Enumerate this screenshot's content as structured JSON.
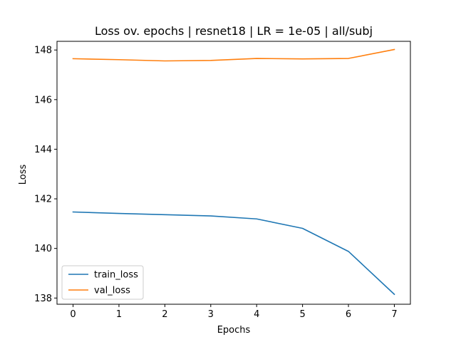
{
  "chart_data": {
    "type": "line",
    "title": "Loss ov. epochs | resnet18 | LR = 1e-05 | all/subj",
    "xlabel": "Epochs",
    "ylabel": "Loss",
    "x": [
      0,
      1,
      2,
      3,
      4,
      5,
      6,
      7
    ],
    "xticks": [
      "0",
      "1",
      "2",
      "3",
      "4",
      "5",
      "6",
      "7"
    ],
    "yticks": [
      "138",
      "140",
      "142",
      "144",
      "146",
      "148"
    ],
    "xlim": [
      -0.35,
      7.35
    ],
    "ylim": [
      137.75,
      148.35
    ],
    "grid": false,
    "legend_position": "lower-left",
    "series": [
      {
        "name": "train_loss",
        "color": "#1f77b4",
        "values": [
          141.47,
          141.41,
          141.36,
          141.31,
          141.19,
          140.81,
          139.88,
          138.15
        ]
      },
      {
        "name": "val_loss",
        "color": "#ff7f0e",
        "values": [
          147.65,
          147.61,
          147.56,
          147.58,
          147.66,
          147.64,
          147.66,
          148.02
        ]
      }
    ]
  }
}
